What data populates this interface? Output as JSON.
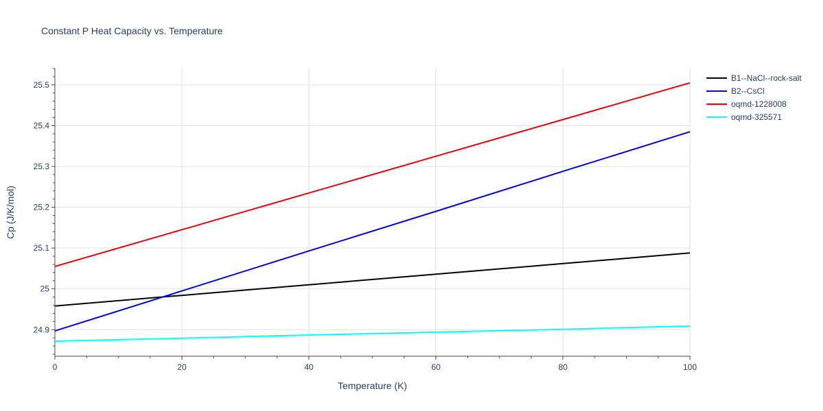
{
  "chart_data": {
    "type": "line",
    "title": "Constant P Heat Capacity vs. Temperature",
    "xlabel": "Temperature (K)",
    "ylabel": "Cp (J/K/mol)",
    "xlim": [
      0,
      100
    ],
    "ylim": [
      24.835,
      25.54
    ],
    "x_ticks": [
      0,
      20,
      40,
      60,
      80,
      100
    ],
    "y_ticks": [
      24.9,
      25,
      25.1,
      25.2,
      25.3,
      25.4,
      25.5
    ],
    "y_tick_labels": [
      "24.9",
      "25",
      "25.1",
      "25.2",
      "25.3",
      "25.4",
      "25.5"
    ],
    "grid": true,
    "legend_position": "top-right",
    "x": [
      0,
      20,
      40,
      60,
      80,
      100
    ],
    "series": [
      {
        "name": "B1--NaCl--rock-salt",
        "color": "#000000",
        "values": [
          24.958,
          24.984,
          25.01,
          25.036,
          25.062,
          25.088
        ]
      },
      {
        "name": "B2--CsCl",
        "color": "#0000ee",
        "values": [
          24.897,
          24.995,
          25.093,
          25.19,
          25.288,
          25.385
        ]
      },
      {
        "name": "oqmd-1228008",
        "color": "#ee0000",
        "values": [
          25.055,
          25.145,
          25.235,
          25.325,
          25.415,
          25.505
        ]
      },
      {
        "name": "oqmd-325571",
        "color": "#00ffff",
        "values": [
          24.872,
          24.879,
          24.887,
          24.894,
          24.901,
          24.909
        ]
      }
    ]
  }
}
